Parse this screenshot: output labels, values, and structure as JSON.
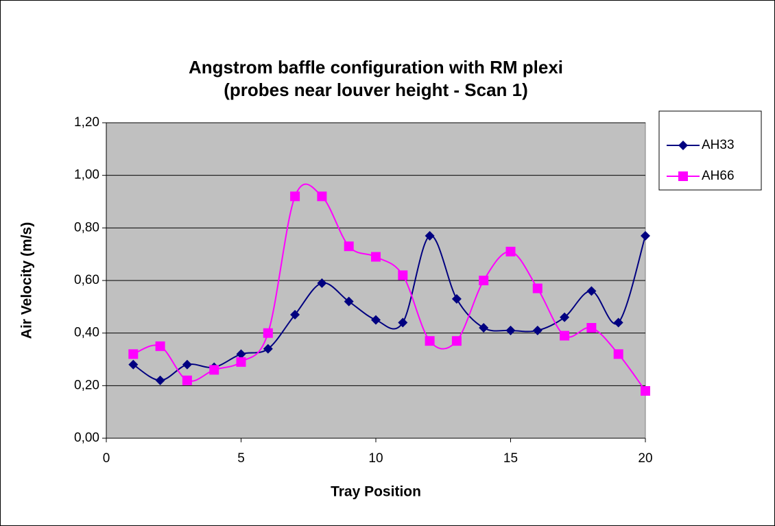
{
  "chart_data": {
    "type": "line",
    "title": [
      "Angstrom baffle configuration with RM plexi",
      "(probes near louver height - Scan 1)"
    ],
    "xlabel": "Tray Position",
    "ylabel": "Air Velocity (m/s)",
    "x": [
      1,
      2,
      3,
      4,
      5,
      6,
      7,
      8,
      9,
      10,
      11,
      12,
      13,
      14,
      15,
      16,
      17,
      18,
      19,
      20
    ],
    "series": [
      {
        "name": "AH33",
        "color": "#000080",
        "marker": "diamond",
        "values": [
          0.28,
          0.22,
          0.28,
          0.27,
          0.32,
          0.34,
          0.47,
          0.59,
          0.52,
          0.45,
          0.44,
          0.77,
          0.53,
          0.42,
          0.41,
          0.41,
          0.46,
          0.56,
          0.44,
          0.77
        ]
      },
      {
        "name": "AH66",
        "color": "#ff00ff",
        "marker": "square",
        "values": [
          0.32,
          0.35,
          0.22,
          0.26,
          0.29,
          0.4,
          0.92,
          0.92,
          0.73,
          0.69,
          0.62,
          0.37,
          0.37,
          0.6,
          0.71,
          0.57,
          0.39,
          0.42,
          0.32,
          0.18
        ]
      }
    ],
    "xlim": [
      0,
      20
    ],
    "xticks": [
      0,
      5,
      10,
      15,
      20
    ],
    "ylim": [
      0,
      1.2
    ],
    "yticks": [
      {
        "value": 0,
        "label": "0,00"
      },
      {
        "value": 0.2,
        "label": "0,20"
      },
      {
        "value": 0.4,
        "label": "0,40"
      },
      {
        "value": 0.6,
        "label": "0,60"
      },
      {
        "value": 0.8,
        "label": "0,80"
      },
      {
        "value": 1.0,
        "label": "1,00"
      },
      {
        "value": 1.2,
        "label": "1,20"
      }
    ],
    "grid": true,
    "smooth": true,
    "legend": "right"
  }
}
